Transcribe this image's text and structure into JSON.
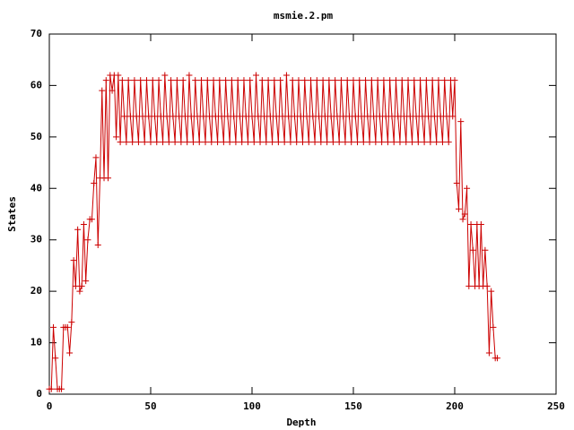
{
  "chart_data": {
    "type": "line",
    "title": "msmie.2.pm",
    "xlabel": "Depth",
    "ylabel": "States",
    "xlim": [
      0,
      250
    ],
    "xticks": [
      0,
      50,
      100,
      150,
      200,
      250
    ],
    "ylim": [
      0,
      70
    ],
    "yticks": [
      0,
      10,
      20,
      30,
      40,
      50,
      60,
      70
    ],
    "color": "#cc0000",
    "markers": true,
    "grid": false,
    "x": [
      0,
      1,
      2,
      3,
      4,
      5,
      6,
      7,
      8,
      9,
      10,
      11,
      12,
      13,
      14,
      15,
      16,
      17,
      18,
      19,
      20,
      21,
      22,
      23,
      24,
      25,
      26,
      27,
      28,
      29,
      30,
      31,
      32,
      33,
      34,
      35,
      36,
      37,
      38,
      39,
      40,
      41,
      42,
      43,
      44,
      45,
      46,
      47,
      48,
      49,
      50,
      51,
      52,
      53,
      54,
      55,
      56,
      57,
      58,
      59,
      60,
      61,
      62,
      63,
      64,
      65,
      66,
      67,
      68,
      69,
      70,
      71,
      72,
      73,
      74,
      75,
      76,
      77,
      78,
      79,
      80,
      81,
      82,
      83,
      84,
      85,
      86,
      87,
      88,
      89,
      90,
      91,
      92,
      93,
      94,
      95,
      96,
      97,
      98,
      99,
      100,
      101,
      102,
      103,
      104,
      105,
      106,
      107,
      108,
      109,
      110,
      111,
      112,
      113,
      114,
      115,
      116,
      117,
      118,
      119,
      120,
      121,
      122,
      123,
      124,
      125,
      126,
      127,
      128,
      129,
      130,
      131,
      132,
      133,
      134,
      135,
      136,
      137,
      138,
      139,
      140,
      141,
      142,
      143,
      144,
      145,
      146,
      147,
      148,
      149,
      150,
      151,
      152,
      153,
      154,
      155,
      156,
      157,
      158,
      159,
      160,
      161,
      162,
      163,
      164,
      165,
      166,
      167,
      168,
      169,
      170,
      171,
      172,
      173,
      174,
      175,
      176,
      177,
      178,
      179,
      180,
      181,
      182,
      183,
      184,
      185,
      186,
      187,
      188,
      189,
      190,
      191,
      192,
      193,
      194,
      195,
      196,
      197,
      198,
      199,
      200,
      201,
      202,
      203,
      204,
      205,
      206,
      207,
      208,
      209,
      210,
      211,
      212,
      213,
      214,
      215,
      216,
      217,
      218,
      219,
      220,
      221
    ],
    "values": [
      1,
      1,
      13,
      7,
      1,
      1,
      1,
      13,
      13,
      13,
      8,
      14,
      26,
      21,
      32,
      20,
      21,
      33,
      22,
      30,
      34,
      34,
      41,
      46,
      29,
      42,
      59,
      42,
      61,
      42,
      62,
      59,
      62,
      50,
      62,
      49,
      61,
      54,
      49,
      61,
      54,
      49,
      61,
      54,
      49,
      61,
      54,
      49,
      61,
      54,
      49,
      61,
      54,
      49,
      61,
      54,
      49,
      62,
      54,
      49,
      61,
      54,
      49,
      61,
      54,
      49,
      61,
      54,
      49,
      62,
      54,
      49,
      61,
      54,
      49,
      61,
      54,
      49,
      61,
      54,
      49,
      61,
      54,
      49,
      61,
      54,
      49,
      61,
      54,
      49,
      61,
      54,
      49,
      61,
      54,
      49,
      61,
      54,
      49,
      61,
      54,
      49,
      62,
      54,
      49,
      61,
      54,
      49,
      61,
      54,
      49,
      61,
      54,
      49,
      61,
      54,
      49,
      62,
      54,
      49,
      61,
      54,
      49,
      61,
      54,
      49,
      61,
      54,
      49,
      61,
      54,
      49,
      61,
      54,
      49,
      61,
      54,
      49,
      61,
      54,
      49,
      61,
      54,
      49,
      61,
      54,
      49,
      61,
      54,
      49,
      61,
      54,
      49,
      61,
      54,
      49,
      61,
      54,
      49,
      61,
      54,
      49,
      61,
      54,
      49,
      61,
      54,
      49,
      61,
      54,
      49,
      61,
      54,
      49,
      61,
      54,
      49,
      61,
      54,
      49,
      61,
      54,
      49,
      61,
      54,
      49,
      61,
      54,
      49,
      61,
      54,
      49,
      61,
      54,
      49,
      61,
      54,
      49,
      61,
      54,
      61,
      41,
      36,
      53,
      34,
      35,
      40,
      21,
      33,
      28,
      21,
      33,
      21,
      33,
      21,
      28,
      21,
      8,
      20,
      13,
      7,
      7
    ]
  }
}
